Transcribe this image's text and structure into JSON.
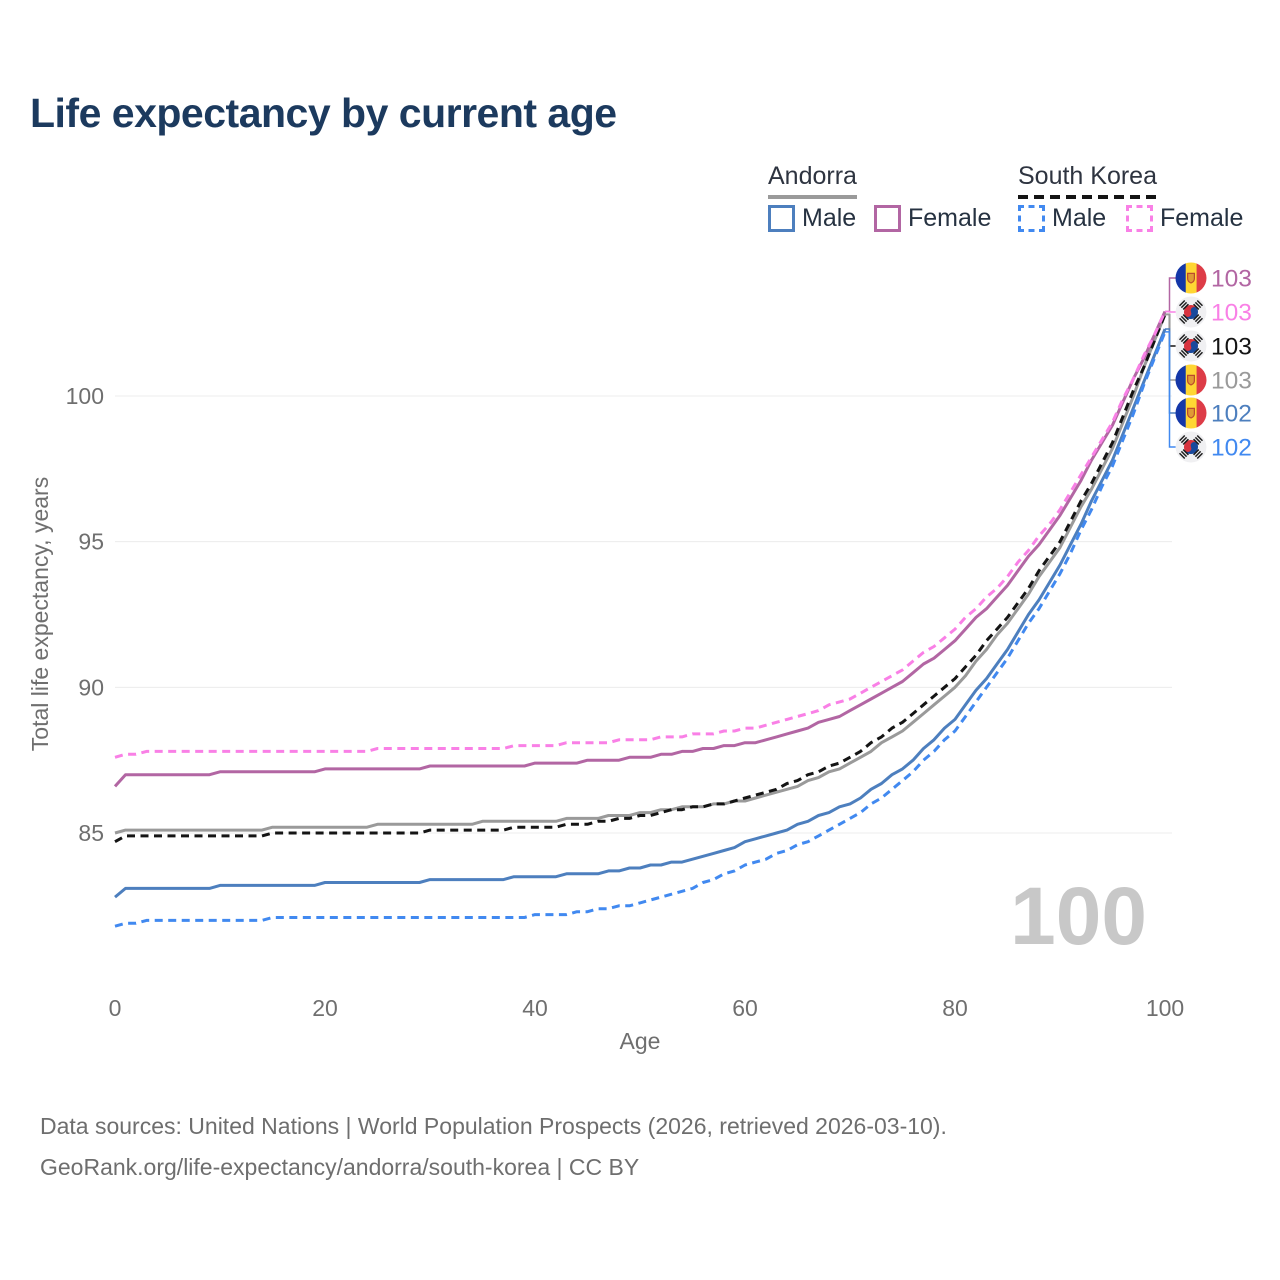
{
  "title": "Life expectancy by current age",
  "watermark": "100",
  "legend": {
    "groups": [
      {
        "label": "Andorra",
        "items": [
          {
            "label": "Male"
          },
          {
            "label": "Female"
          }
        ]
      },
      {
        "label": "South Korea",
        "items": [
          {
            "label": "Male"
          },
          {
            "label": "Female"
          }
        ]
      }
    ]
  },
  "footer": {
    "line1": "Data sources: United Nations | World Population Prospects (2026, retrieved 2026-03-10).",
    "line2": "GeoRank.org/life-expectancy/andorra/south-korea | CC BY"
  },
  "chart_data": {
    "type": "line",
    "title": "Life expectancy by current age",
    "xlabel": "Age",
    "ylabel": "Total life expectancy, years",
    "xlim": [
      0,
      100
    ],
    "ylim": [
      80.5,
      104.5
    ],
    "xticks": [
      0,
      20,
      40,
      60,
      80,
      100
    ],
    "yticks": [
      85,
      90,
      95,
      100
    ],
    "grid": "horizontal-only",
    "legend_position": "top-right",
    "x": [
      0,
      1,
      3,
      5,
      10,
      15,
      20,
      25,
      30,
      35,
      40,
      45,
      50,
      55,
      60,
      65,
      70,
      75,
      80,
      85,
      90,
      95,
      100
    ],
    "series": [
      {
        "name": "Andorra Female",
        "country": "Andorra",
        "sex": "Female",
        "flag": "ad",
        "color": "#b266a3",
        "dashed": false,
        "end_label": "103",
        "values": [
          86.6,
          86.95,
          87.0,
          87.0,
          87.05,
          87.1,
          87.15,
          87.2,
          87.25,
          87.3,
          87.35,
          87.45,
          87.6,
          87.8,
          88.05,
          88.5,
          89.15,
          90.2,
          91.6,
          93.5,
          95.9,
          99.0,
          102.9
        ]
      },
      {
        "name": "South Korea Female",
        "country": "South Korea",
        "sex": "Female",
        "flag": "kr",
        "color": "#f980e6",
        "dashed": true,
        "end_label": "103",
        "values": [
          87.55,
          87.7,
          87.75,
          87.75,
          87.75,
          87.8,
          87.8,
          87.85,
          87.85,
          87.9,
          88.0,
          88.1,
          88.2,
          88.35,
          88.55,
          89.0,
          89.6,
          90.6,
          92.0,
          93.8,
          96.1,
          99.1,
          102.9
        ]
      },
      {
        "name": "South Korea Both sexes",
        "country": "South Korea",
        "sex": "Both",
        "flag": "kr",
        "color": "#141414",
        "dashed": true,
        "end_label": "103",
        "values": [
          84.65,
          84.85,
          84.9,
          84.9,
          84.9,
          84.95,
          84.95,
          85.0,
          85.05,
          85.1,
          85.2,
          85.3,
          85.6,
          85.85,
          86.15,
          86.8,
          87.6,
          88.8,
          90.3,
          92.4,
          95.0,
          98.4,
          102.8
        ]
      },
      {
        "name": "Andorra Both sexes",
        "country": "Andorra",
        "sex": "Both",
        "flag": "ad",
        "color": "#9a9a9a",
        "dashed": false,
        "end_label": "103",
        "values": [
          85.0,
          85.05,
          85.1,
          85.1,
          85.1,
          85.15,
          85.2,
          85.25,
          85.3,
          85.35,
          85.4,
          85.5,
          85.65,
          85.9,
          86.1,
          86.6,
          87.4,
          88.5,
          90.0,
          92.2,
          94.8,
          98.2,
          102.8
        ]
      },
      {
        "name": "Andorra Male",
        "country": "Andorra",
        "sex": "Male",
        "flag": "ad",
        "color": "#4d7fbe",
        "dashed": false,
        "end_label": "102",
        "values": [
          82.75,
          83.05,
          83.1,
          83.1,
          83.15,
          83.2,
          83.25,
          83.3,
          83.35,
          83.4,
          83.5,
          83.6,
          83.8,
          84.1,
          84.65,
          85.25,
          86.0,
          87.2,
          88.9,
          91.3,
          94.2,
          97.8,
          102.3
        ]
      },
      {
        "name": "South Korea Male",
        "country": "South Korea",
        "sex": "Male",
        "flag": "kr",
        "color": "#4189f0",
        "dashed": true,
        "end_label": "102",
        "values": [
          81.75,
          81.9,
          81.95,
          82.0,
          82.0,
          82.05,
          82.05,
          82.1,
          82.1,
          82.1,
          82.15,
          82.3,
          82.6,
          83.1,
          83.85,
          84.55,
          85.45,
          86.75,
          88.5,
          91.0,
          93.9,
          97.6,
          102.2
        ]
      }
    ]
  }
}
